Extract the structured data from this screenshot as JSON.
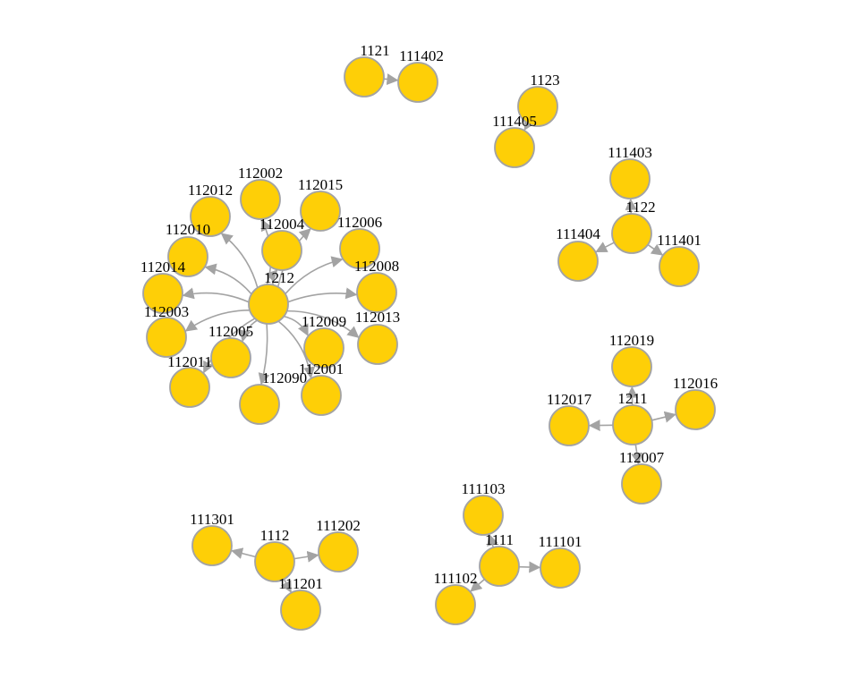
{
  "colors": {
    "node_fill": "#fecf07",
    "node_stroke": "#a3a3a3",
    "edge": "#a3a3a3",
    "label": "#000000",
    "background": "#ffffff"
  },
  "nodes": [
    {
      "id": "1121"
    },
    {
      "id": "111402"
    },
    {
      "id": "1123"
    },
    {
      "id": "111405"
    },
    {
      "id": "1122"
    },
    {
      "id": "111403"
    },
    {
      "id": "111404"
    },
    {
      "id": "111401"
    },
    {
      "id": "1212"
    },
    {
      "id": "112002"
    },
    {
      "id": "112015"
    },
    {
      "id": "112012"
    },
    {
      "id": "112004"
    },
    {
      "id": "112006"
    },
    {
      "id": "112010"
    },
    {
      "id": "112008"
    },
    {
      "id": "112014"
    },
    {
      "id": "112003"
    },
    {
      "id": "112009"
    },
    {
      "id": "112013"
    },
    {
      "id": "112005"
    },
    {
      "id": "112011"
    },
    {
      "id": "112090"
    },
    {
      "id": "112001"
    },
    {
      "id": "1211"
    },
    {
      "id": "112019"
    },
    {
      "id": "112017"
    },
    {
      "id": "112016"
    },
    {
      "id": "112007"
    },
    {
      "id": "1112"
    },
    {
      "id": "111301"
    },
    {
      "id": "111202"
    },
    {
      "id": "111201"
    },
    {
      "id": "1111"
    },
    {
      "id": "111103"
    },
    {
      "id": "111101"
    },
    {
      "id": "111102"
    }
  ],
  "edges": [
    {
      "from": "1121",
      "to": "111402"
    },
    {
      "from": "1123",
      "to": "111405"
    },
    {
      "from": "1122",
      "to": "111403"
    },
    {
      "from": "1122",
      "to": "111404"
    },
    {
      "from": "1122",
      "to": "111401"
    },
    {
      "from": "1212",
      "to": "112002"
    },
    {
      "from": "1212",
      "to": "112015"
    },
    {
      "from": "1212",
      "to": "112012"
    },
    {
      "from": "1212",
      "to": "112004"
    },
    {
      "from": "1212",
      "to": "112006"
    },
    {
      "from": "1212",
      "to": "112010"
    },
    {
      "from": "1212",
      "to": "112008"
    },
    {
      "from": "1212",
      "to": "112014"
    },
    {
      "from": "1212",
      "to": "112003"
    },
    {
      "from": "1212",
      "to": "112009"
    },
    {
      "from": "1212",
      "to": "112013"
    },
    {
      "from": "1212",
      "to": "112005"
    },
    {
      "from": "1212",
      "to": "112011"
    },
    {
      "from": "1212",
      "to": "112090"
    },
    {
      "from": "1212",
      "to": "112001"
    },
    {
      "from": "1211",
      "to": "112019"
    },
    {
      "from": "1211",
      "to": "112017"
    },
    {
      "from": "1211",
      "to": "112016"
    },
    {
      "from": "1211",
      "to": "112007"
    },
    {
      "from": "1112",
      "to": "111301"
    },
    {
      "from": "1112",
      "to": "111202"
    },
    {
      "from": "1112",
      "to": "111201"
    },
    {
      "from": "1111",
      "to": "111103"
    },
    {
      "from": "1111",
      "to": "111101"
    },
    {
      "from": "1111",
      "to": "111102"
    }
  ]
}
